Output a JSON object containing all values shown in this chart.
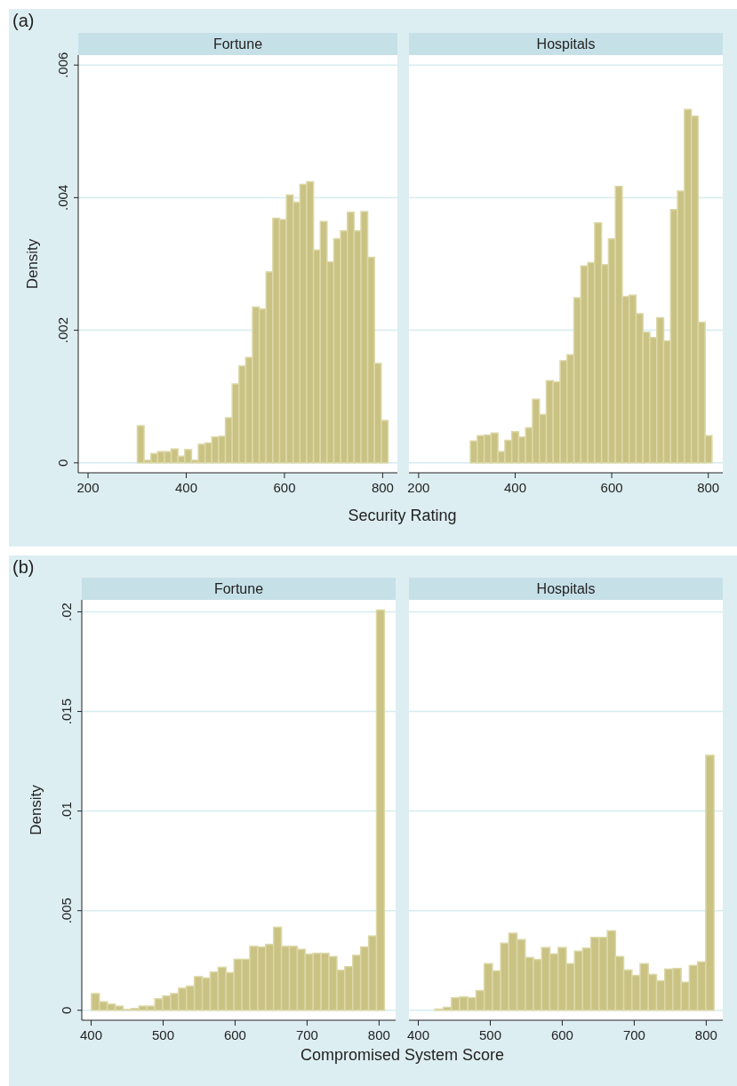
{
  "chart_data": [
    {
      "type": "histogram",
      "title": "Fortune",
      "ylabel": "Density",
      "xlabel": "Security Rating",
      "annotations": [
        "(a)"
      ],
      "color": "#c9c283",
      "grid": "y",
      "xlim": [
        180,
        830
      ],
      "xticks": [
        200,
        400,
        600,
        800
      ],
      "ylim": [
        -0.00015,
        0.00615
      ],
      "yticks": [
        0,
        {
          "value": 0.002,
          "label": ".002"
        },
        {
          "value": 0.004,
          "label": ".004"
        },
        {
          "value": 0.006,
          "label": ".006"
        }
      ],
      "bins": [
        300,
        313.8,
        327.6,
        341.4,
        355.2,
        369,
        382.8,
        396.6,
        410.4,
        424.2,
        438,
        451.8,
        465.6,
        479.4,
        493.2,
        507,
        520.8,
        534.6,
        548.4,
        562.2,
        576,
        589.8,
        603.6,
        617.4,
        631.2,
        645,
        658.8,
        672.6,
        686.4,
        700.2,
        714,
        727.8,
        741.6,
        755.4,
        769.2,
        783,
        796.8,
        810.6
      ],
      "values": [
        0.00056,
        4e-05,
        0.00014,
        0.00017,
        0.00017,
        0.00021,
        0.0001,
        0.0002,
        4e-05,
        0.00028,
        0.0003,
        0.00039,
        0.0004,
        0.00068,
        0.00119,
        0.00146,
        0.00159,
        0.00235,
        0.00232,
        0.00288,
        0.00369,
        0.00367,
        0.00404,
        0.00393,
        0.0042,
        0.00424,
        0.00321,
        0.00364,
        0.00303,
        0.00338,
        0.0035,
        0.00378,
        0.0035,
        0.00379,
        0.0031,
        0.0015,
        0.00064
      ]
    },
    {
      "type": "histogram",
      "title": "Hospitals",
      "tick_labels": "x",
      "color": "#c9c283",
      "grid": "y",
      "xlim": [
        180,
        830
      ],
      "xticks": [
        200,
        400,
        600,
        800
      ],
      "ylim": [
        -0.00015,
        0.00615
      ],
      "yticks": [
        0,
        0.002,
        0.004,
        0.006
      ],
      "bins": [
        307,
        321.3,
        335.6,
        349.9,
        364.2,
        378.5,
        392.8,
        407.1,
        421.4,
        435.7,
        450,
        464.3,
        478.6,
        492.9,
        507.2,
        521.5,
        535.8,
        550.1,
        564.4,
        578.7,
        593,
        607.3,
        621.6,
        635.9,
        650.2,
        664.5,
        678.8,
        693.1,
        707.4,
        721.7,
        736,
        750.3,
        764.6,
        778.9,
        793.2,
        807.5
      ],
      "values": [
        0.00033,
        0.00041,
        0.00042,
        0.00045,
        0.00017,
        0.00034,
        0.00047,
        0.00039,
        0.00053,
        0.00096,
        0.00073,
        0.00124,
        0.00122,
        0.00154,
        0.00163,
        0.00249,
        0.00297,
        0.00302,
        0.00362,
        0.00299,
        0.00338,
        0.00417,
        0.00251,
        0.00253,
        0.00225,
        0.00197,
        0.00189,
        0.00219,
        0.00184,
        0.00382,
        0.0041,
        0.00533,
        0.00523,
        0.00212,
        0.00041
      ]
    },
    {
      "type": "histogram",
      "title": "Fortune",
      "ylabel": "Density",
      "xlabel": "Compromised System Score",
      "annotations": [
        "(b)"
      ],
      "color": "#c9c283",
      "grid": "y",
      "xlim": [
        387,
        823
      ],
      "xticks": [
        400,
        500,
        600,
        700,
        800
      ],
      "ylim": [
        -0.0005,
        0.0206
      ],
      "yticks": [
        0,
        {
          "value": 0.005,
          "label": ".005"
        },
        {
          "value": 0.01,
          "label": ".01"
        },
        {
          "value": 0.015,
          "label": ".015"
        },
        {
          "value": 0.02,
          "label": ".02"
        }
      ],
      "bins": [
        401,
        412,
        423,
        434,
        445,
        456,
        467,
        478,
        489,
        500,
        511,
        522,
        533,
        544,
        555,
        566,
        577,
        588,
        599,
        610,
        621,
        632,
        643,
        654,
        665,
        676,
        687,
        698,
        709,
        720,
        731,
        742,
        753,
        764,
        775,
        786,
        797,
        808
      ],
      "values": [
        0.00084,
        0.00043,
        0.00031,
        0.00021,
        4e-05,
        9e-05,
        0.00021,
        0.00021,
        0.00058,
        0.00072,
        0.00084,
        0.00111,
        0.00121,
        0.00169,
        0.00162,
        0.00192,
        0.00216,
        0.00189,
        0.00256,
        0.00256,
        0.00321,
        0.00318,
        0.00331,
        0.00417,
        0.00321,
        0.00321,
        0.00306,
        0.00282,
        0.00286,
        0.00286,
        0.0027,
        0.00201,
        0.00219,
        0.00276,
        0.00318,
        0.00373,
        0.02009
      ]
    },
    {
      "type": "histogram",
      "title": "Hospitals",
      "tick_labels": "x",
      "color": "#c9c283",
      "grid": "y",
      "xlim": [
        387,
        823
      ],
      "xticks": [
        400,
        500,
        600,
        700,
        800
      ],
      "ylim": [
        -0.0005,
        0.0206
      ],
      "yticks": [
        0,
        0.005,
        0.01,
        0.015,
        0.02
      ],
      "bins": [
        422.7,
        434.1,
        445.5,
        456.9,
        468.3,
        479.7,
        491.1,
        502.5,
        513.9,
        525.3,
        536.7,
        548.1,
        559.5,
        570.9,
        582.3,
        593.7,
        605.1,
        616.5,
        627.9,
        639.3,
        650.7,
        662.1,
        673.5,
        684.9,
        696.3,
        707.7,
        719.1,
        730.5,
        741.9,
        753.3,
        764.7,
        776.1,
        787.5,
        798.9,
        810.3
      ],
      "values": [
        6e-05,
        0.00015,
        0.00063,
        0.00067,
        0.00063,
        0.00099,
        0.00234,
        0.00198,
        0.00337,
        0.00387,
        0.00355,
        0.00265,
        0.00255,
        0.00315,
        0.00283,
        0.00315,
        0.00234,
        0.00297,
        0.00312,
        0.00366,
        0.00366,
        0.00399,
        0.0027,
        0.00202,
        0.00175,
        0.00234,
        0.0018,
        0.00148,
        0.00207,
        0.0021,
        0.00141,
        0.00225,
        0.00243,
        0.0128
      ]
    }
  ]
}
